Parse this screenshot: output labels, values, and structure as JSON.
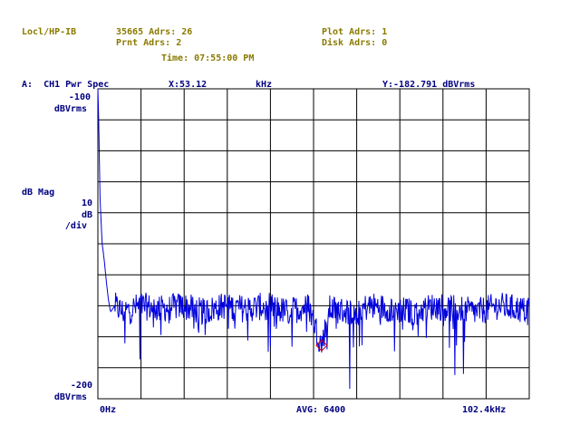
{
  "header": {
    "interface": "Locl/HP-IB",
    "instrument_addr": "35665 Adrs: 26",
    "print_addr": "Prnt Adrs: 2",
    "plot_addr": "Plot Adrs: 1",
    "disk_addr": "Disk Adrs: 0",
    "time": "Time: 07:55:00 PM"
  },
  "trace": {
    "label": "A:  CH1 Pwr Spec",
    "x_readout": "X:53.12",
    "x_unit": "kHz",
    "y_readout": "Y:-182.791 dBVrms"
  },
  "axes": {
    "y_top": "-100",
    "y_top_unit": "dBVrms",
    "y_scale_label": "dB Mag",
    "y_per_div_value": "10",
    "y_per_div_unit": "dB",
    "y_per_div_suffix": "/div",
    "y_bottom": "-200",
    "y_bottom_unit": "dBVrms",
    "x_start": "0Hz",
    "averaging": "AVG: 6400",
    "x_end": "102.4kHz"
  },
  "colors": {
    "header_text": "#8a7a00",
    "axis_text": "#000080",
    "trace": "#0000dd",
    "marker": "#cc0000",
    "grid": "#000000"
  },
  "chart_data": {
    "type": "line",
    "grid": true,
    "xlim": [
      0,
      102.4
    ],
    "ylim": [
      -200,
      -100
    ],
    "x_unit": "kHz",
    "y_unit": "dBVrms",
    "marker": {
      "x": 53.12,
      "y": -182.791
    },
    "series": [
      {
        "x": [
          0,
          0.2,
          0.5,
          1,
          1.5,
          2,
          2.5,
          3,
          4,
          6,
          10,
          15,
          20,
          25,
          30,
          35,
          40,
          45,
          50,
          53.12,
          55,
          60,
          65,
          70,
          75,
          80,
          85,
          90,
          95,
          100,
          102.4
        ],
        "values": [
          -100,
          -110,
          -135,
          -150,
          -155,
          -162,
          -168,
          -172,
          -170,
          -172,
          -170,
          -171,
          -170,
          -172,
          -170,
          -171,
          -170,
          -172,
          -170,
          -182.8,
          -171,
          -172,
          -170,
          -171,
          -172,
          -170,
          -171,
          -172,
          -170,
          -171,
          -172
        ]
      }
    ]
  }
}
